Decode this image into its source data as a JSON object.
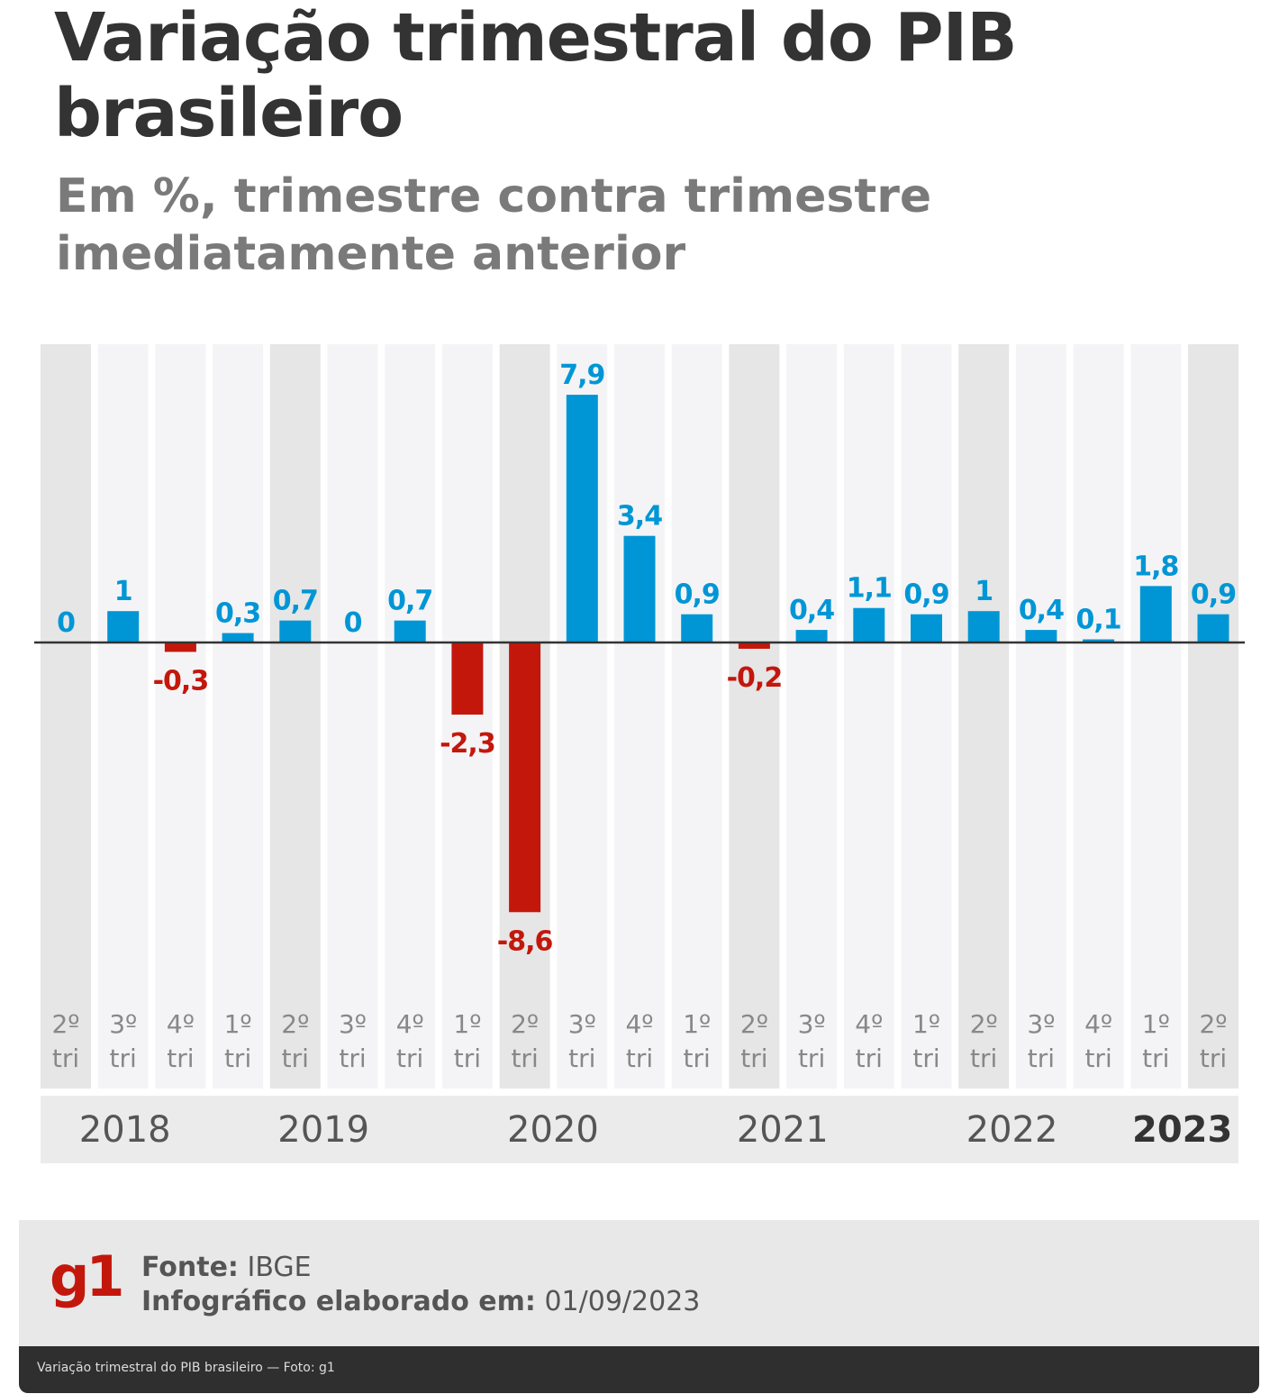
{
  "header": {
    "title": "Variação trimestral do PIB brasileiro",
    "subtitle": "Em %, trimestre contra trimestre imediatamente anterior"
  },
  "footer": {
    "logo": "g1",
    "source_label": "Fonte:",
    "source_value": "IBGE",
    "date_label": "Infográfico elaborado em:",
    "date_value": "01/09/2023"
  },
  "caption": "Variação trimestral do PIB brasileiro — Foto: g1",
  "colors": {
    "positive": "#0096d6",
    "negative": "#c4170c",
    "band_dark": "#e6e6e6",
    "band_light": "#f4f4f6"
  },
  "chart_data": {
    "type": "bar",
    "categories": [
      {
        "q": "2º",
        "t": "tri",
        "year": "2018"
      },
      {
        "q": "3º",
        "t": "tri",
        "year": "2018"
      },
      {
        "q": "4º",
        "t": "tri",
        "year": "2018"
      },
      {
        "q": "1º",
        "t": "tri",
        "year": "2019"
      },
      {
        "q": "2º",
        "t": "tri",
        "year": "2019"
      },
      {
        "q": "3º",
        "t": "tri",
        "year": "2019"
      },
      {
        "q": "4º",
        "t": "tri",
        "year": "2019"
      },
      {
        "q": "1º",
        "t": "tri",
        "year": "2020"
      },
      {
        "q": "2º",
        "t": "tri",
        "year": "2020"
      },
      {
        "q": "3º",
        "t": "tri",
        "year": "2020"
      },
      {
        "q": "4º",
        "t": "tri",
        "year": "2020"
      },
      {
        "q": "1º",
        "t": "tri",
        "year": "2021"
      },
      {
        "q": "2º",
        "t": "tri",
        "year": "2021"
      },
      {
        "q": "3º",
        "t": "tri",
        "year": "2021"
      },
      {
        "q": "4º",
        "t": "tri",
        "year": "2021"
      },
      {
        "q": "1º",
        "t": "tri",
        "year": "2022"
      },
      {
        "q": "2º",
        "t": "tri",
        "year": "2022"
      },
      {
        "q": "3º",
        "t": "tri",
        "year": "2022"
      },
      {
        "q": "4º",
        "t": "tri",
        "year": "2022"
      },
      {
        "q": "1º",
        "t": "tri",
        "year": "2023"
      },
      {
        "q": "2º",
        "t": "tri",
        "year": "2023"
      }
    ],
    "values": [
      0,
      1,
      -0.3,
      0.3,
      0.7,
      0,
      0.7,
      -2.3,
      -8.6,
      7.9,
      3.4,
      0.9,
      -0.2,
      0.4,
      1.1,
      0.9,
      1,
      0.4,
      0.1,
      1.8,
      0.9
    ],
    "labels": [
      "0",
      "1",
      "-0,3",
      "0,3",
      "0,7",
      "0",
      "0,7",
      "-2,3",
      "-8,6",
      "7,9",
      "3,4",
      "0,9",
      "-0,2",
      "0,4",
      "1,1",
      "0,9",
      "1",
      "0,4",
      "0,1",
      "1,8",
      "0,9"
    ],
    "years": [
      {
        "label": "2018",
        "bold": false
      },
      {
        "label": "2019",
        "bold": false
      },
      {
        "label": "2020",
        "bold": false
      },
      {
        "label": "2021",
        "bold": false
      },
      {
        "label": "2022",
        "bold": false
      },
      {
        "label": "2023",
        "bold": true
      }
    ],
    "ylim": [
      -9.5,
      9.5
    ],
    "xlabel": "",
    "ylabel": ""
  }
}
